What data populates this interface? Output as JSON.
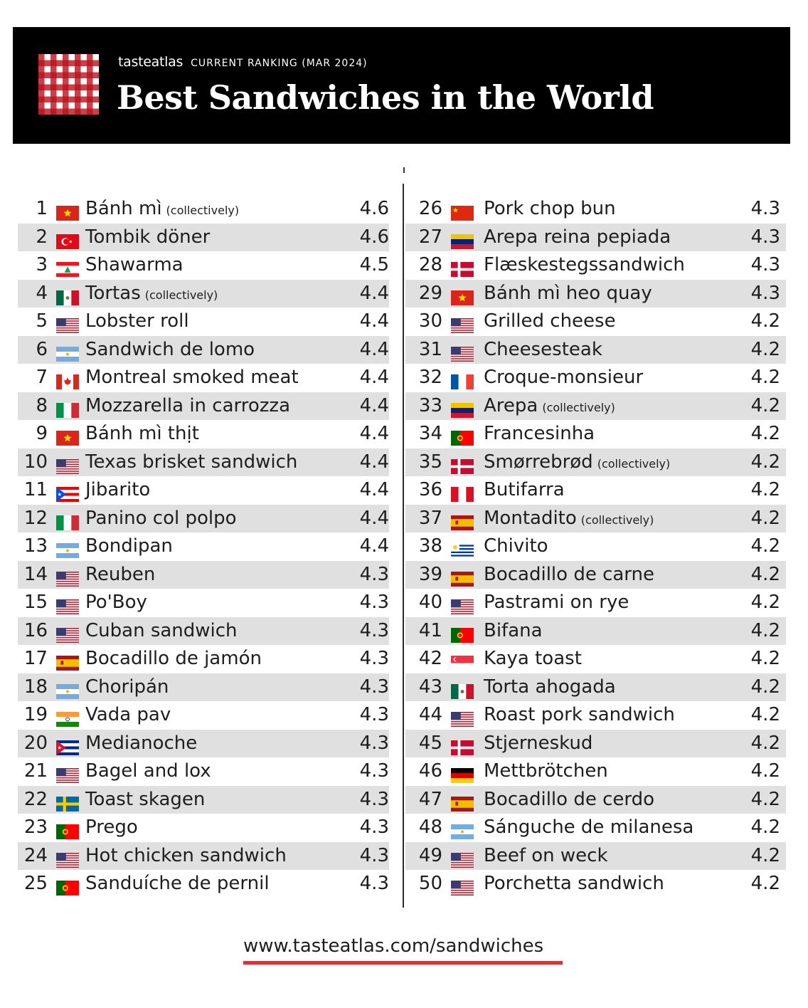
{
  "header": {
    "brand": "tasteatlas",
    "subtitle": "CURRENT RANKING (MAR 2024)",
    "title": "Best Sandwiches in the World"
  },
  "colors": {
    "header_bg": "#000000",
    "row_shade": "#e0e0e0",
    "accent_red": "#d9333a"
  },
  "rankings": [
    {
      "rank": "1",
      "flag": "vietnam",
      "name": "Bánh mì",
      "note": "(collectively)",
      "score": "4.6"
    },
    {
      "rank": "2",
      "flag": "turkey",
      "name": "Tombik döner",
      "note": "",
      "score": "4.6"
    },
    {
      "rank": "3",
      "flag": "lebanon",
      "name": "Shawarma",
      "note": "",
      "score": "4.5"
    },
    {
      "rank": "4",
      "flag": "mexico",
      "name": "Tortas",
      "note": "(collectively)",
      "score": "4.4"
    },
    {
      "rank": "5",
      "flag": "usa",
      "name": "Lobster roll",
      "note": "",
      "score": "4.4"
    },
    {
      "rank": "6",
      "flag": "argentina",
      "name": "Sandwich de lomo",
      "note": "",
      "score": "4.4"
    },
    {
      "rank": "7",
      "flag": "canada",
      "name": "Montreal smoked meat",
      "note": "",
      "score": "4.4"
    },
    {
      "rank": "8",
      "flag": "italy",
      "name": "Mozzarella in carrozza",
      "note": "",
      "score": "4.4"
    },
    {
      "rank": "9",
      "flag": "vietnam",
      "name": "Bánh mì thịt",
      "note": "",
      "score": "4.4"
    },
    {
      "rank": "10",
      "flag": "usa",
      "name": "Texas brisket sandwich",
      "note": "",
      "score": "4.4"
    },
    {
      "rank": "11",
      "flag": "puerto-rico",
      "name": "Jibarito",
      "note": "",
      "score": "4.4"
    },
    {
      "rank": "12",
      "flag": "italy",
      "name": "Panino col polpo",
      "note": "",
      "score": "4.4"
    },
    {
      "rank": "13",
      "flag": "argentina",
      "name": "Bondipan",
      "note": "",
      "score": "4.4"
    },
    {
      "rank": "14",
      "flag": "usa",
      "name": "Reuben",
      "note": "",
      "score": "4.3"
    },
    {
      "rank": "15",
      "flag": "usa",
      "name": "Po'Boy",
      "note": "",
      "score": "4.3"
    },
    {
      "rank": "16",
      "flag": "usa",
      "name": "Cuban sandwich",
      "note": "",
      "score": "4.3"
    },
    {
      "rank": "17",
      "flag": "spain",
      "name": "Bocadillo de jamón",
      "note": "",
      "score": "4.3"
    },
    {
      "rank": "18",
      "flag": "argentina",
      "name": "Choripán",
      "note": "",
      "score": "4.3"
    },
    {
      "rank": "19",
      "flag": "india",
      "name": "Vada pav",
      "note": "",
      "score": "4.3"
    },
    {
      "rank": "20",
      "flag": "cuba",
      "name": "Medianoche",
      "note": "",
      "score": "4.3"
    },
    {
      "rank": "21",
      "flag": "usa",
      "name": "Bagel and lox",
      "note": "",
      "score": "4.3"
    },
    {
      "rank": "22",
      "flag": "sweden",
      "name": "Toast skagen",
      "note": "",
      "score": "4.3"
    },
    {
      "rank": "23",
      "flag": "portugal",
      "name": "Prego",
      "note": "",
      "score": "4.3"
    },
    {
      "rank": "24",
      "flag": "usa",
      "name": "Hot chicken sandwich",
      "note": "",
      "score": "4.3"
    },
    {
      "rank": "25",
      "flag": "portugal",
      "name": "Sanduíche de pernil",
      "note": "",
      "score": "4.3"
    },
    {
      "rank": "26",
      "flag": "china",
      "name": "Pork chop bun",
      "note": "",
      "score": "4.3"
    },
    {
      "rank": "27",
      "flag": "venezuela",
      "name": "Arepa reina pepiada",
      "note": "",
      "score": "4.3"
    },
    {
      "rank": "28",
      "flag": "denmark",
      "name": "Flæskestegssandwich",
      "note": "",
      "score": "4.3"
    },
    {
      "rank": "29",
      "flag": "vietnam",
      "name": "Bánh mì heo quay",
      "note": "",
      "score": "4.3"
    },
    {
      "rank": "30",
      "flag": "usa",
      "name": "Grilled cheese",
      "note": "",
      "score": "4.2"
    },
    {
      "rank": "31",
      "flag": "usa",
      "name": "Cheesesteak",
      "note": "",
      "score": "4.2"
    },
    {
      "rank": "32",
      "flag": "france",
      "name": "Croque-monsieur",
      "note": "",
      "score": "4.2"
    },
    {
      "rank": "33",
      "flag": "venezuela",
      "name": "Arepa",
      "note": "(collectively)",
      "score": "4.2"
    },
    {
      "rank": "34",
      "flag": "portugal",
      "name": "Francesinha",
      "note": "",
      "score": "4.2"
    },
    {
      "rank": "35",
      "flag": "denmark",
      "name": "Smørrebrød",
      "note": "(collectively)",
      "score": "4.2"
    },
    {
      "rank": "36",
      "flag": "peru",
      "name": "Butifarra",
      "note": "",
      "score": "4.2"
    },
    {
      "rank": "37",
      "flag": "spain",
      "name": "Montadito",
      "note": "(collectively)",
      "score": "4.2"
    },
    {
      "rank": "38",
      "flag": "uruguay",
      "name": "Chivito",
      "note": "",
      "score": "4.2"
    },
    {
      "rank": "39",
      "flag": "spain",
      "name": "Bocadillo de carne",
      "note": "",
      "score": "4.2"
    },
    {
      "rank": "40",
      "flag": "usa",
      "name": "Pastrami on rye",
      "note": "",
      "score": "4.2"
    },
    {
      "rank": "41",
      "flag": "portugal",
      "name": "Bifana",
      "note": "",
      "score": "4.2"
    },
    {
      "rank": "42",
      "flag": "singapore",
      "name": "Kaya toast",
      "note": "",
      "score": "4.2"
    },
    {
      "rank": "43",
      "flag": "mexico",
      "name": "Torta ahogada",
      "note": "",
      "score": "4.2"
    },
    {
      "rank": "44",
      "flag": "usa",
      "name": "Roast pork sandwich",
      "note": "",
      "score": "4.2"
    },
    {
      "rank": "45",
      "flag": "denmark",
      "name": "Stjerneskud",
      "note": "",
      "score": "4.2"
    },
    {
      "rank": "46",
      "flag": "germany",
      "name": "Mettbrötchen",
      "note": "",
      "score": "4.2"
    },
    {
      "rank": "47",
      "flag": "spain",
      "name": "Bocadillo de cerdo",
      "note": "",
      "score": "4.2"
    },
    {
      "rank": "48",
      "flag": "argentina",
      "name": "Sánguche de milanesa",
      "note": "",
      "score": "4.2"
    },
    {
      "rank": "49",
      "flag": "usa",
      "name": "Beef on weck",
      "note": "",
      "score": "4.2"
    },
    {
      "rank": "50",
      "flag": "usa",
      "name": "Porchetta sandwich",
      "note": "",
      "score": "4.2"
    }
  ],
  "footer": {
    "url": "www.tasteatlas.com/sandwiches"
  }
}
